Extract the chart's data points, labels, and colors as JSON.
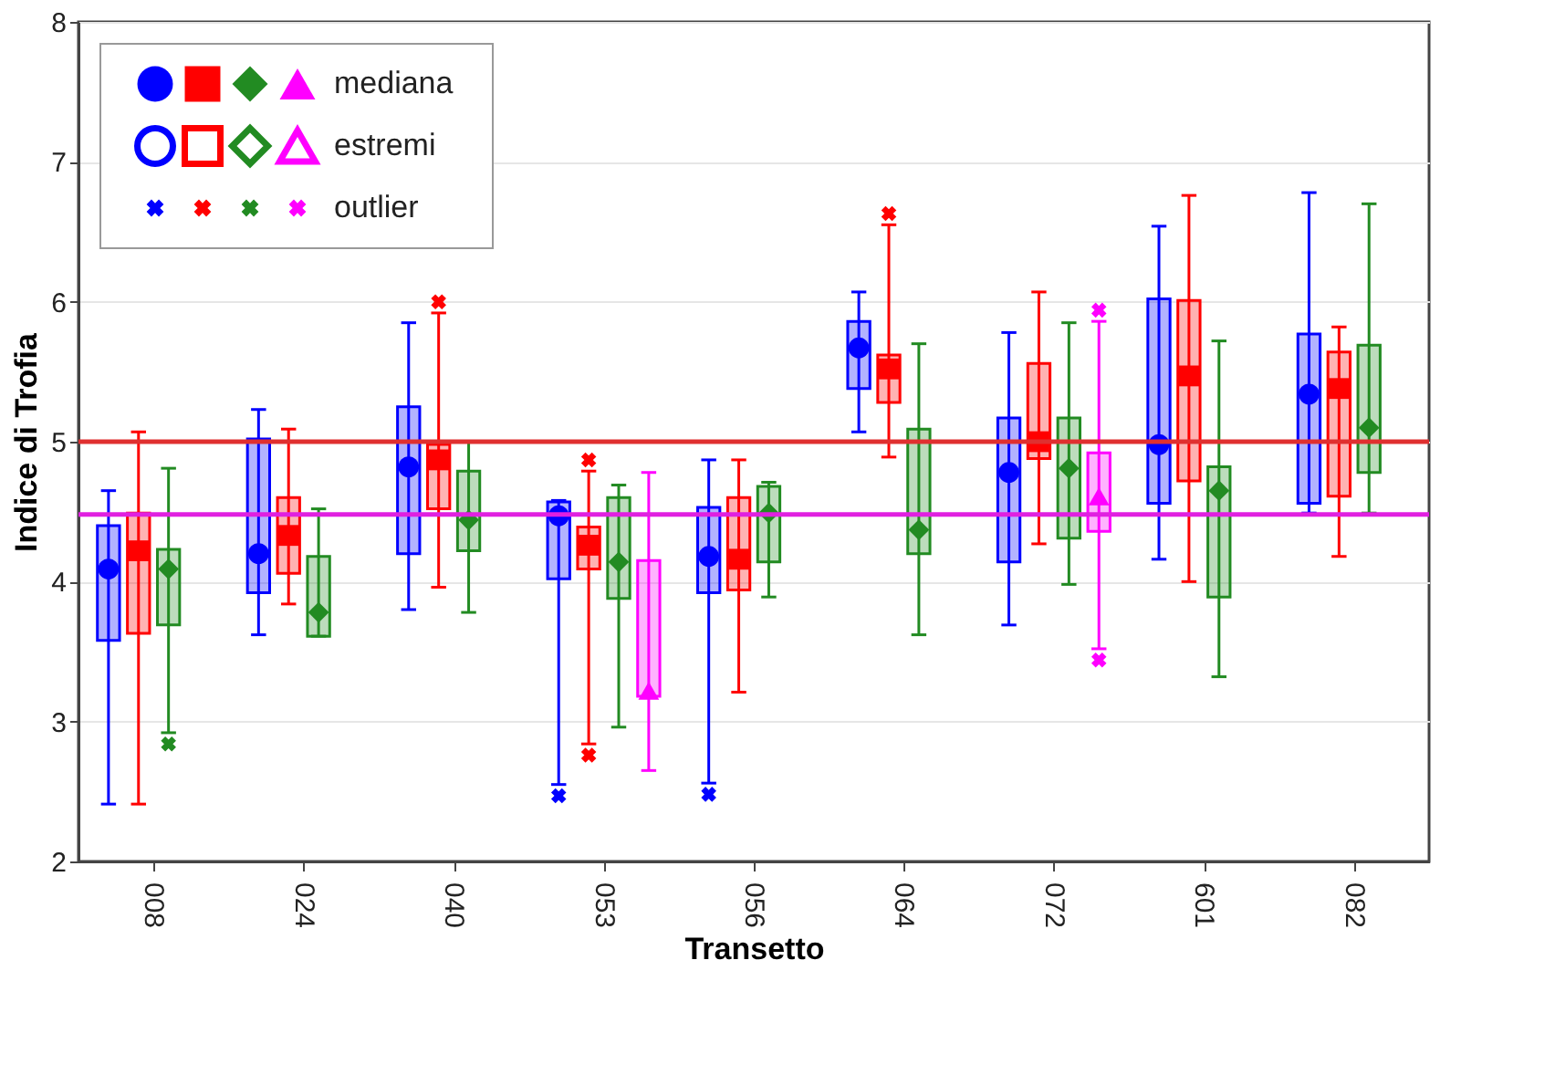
{
  "chart_data": {
    "type": "box",
    "xlabel": "Transetto",
    "ylabel": "Indice di Trofia",
    "categories": [
      "008",
      "024",
      "040",
      "053",
      "056",
      "064",
      "072",
      "601",
      "082"
    ],
    "ylim": [
      2,
      8
    ],
    "yticks": [
      2,
      3,
      4,
      5,
      6,
      7,
      8
    ],
    "grid": "y",
    "annotations": [
      "mediana",
      "estremi",
      "outlier"
    ],
    "ref_lines": [
      {
        "axis": "y",
        "value": 5.0,
        "color": "#e03030"
      },
      {
        "axis": "y",
        "value": 4.48,
        "color": "#e020e0"
      }
    ],
    "series": [
      {
        "color": "#0000ff",
        "marker": "circle",
        "boxes": [
          {
            "low": 2.41,
            "q1": 3.58,
            "median": 4.09,
            "q3": 4.4,
            "high": 4.65
          },
          {
            "low": 3.62,
            "q1": 3.92,
            "median": 4.2,
            "q3": 5.02,
            "high": 5.23
          },
          {
            "low": 3.8,
            "q1": 4.2,
            "median": 4.82,
            "q3": 5.25,
            "high": 5.85
          },
          {
            "low": 2.55,
            "q1": 4.02,
            "median": 4.47,
            "q3": 4.57,
            "high": 4.58,
            "outliers": [
              2.47
            ]
          },
          {
            "low": 2.56,
            "q1": 3.92,
            "median": 4.18,
            "q3": 4.53,
            "high": 4.87,
            "outliers": [
              2.48
            ]
          },
          {
            "low": 5.07,
            "q1": 5.38,
            "median": 5.67,
            "q3": 5.86,
            "high": 6.07
          },
          {
            "low": 3.69,
            "q1": 4.14,
            "median": 4.78,
            "q3": 5.17,
            "high": 5.78
          },
          {
            "low": 4.16,
            "q1": 4.56,
            "median": 4.98,
            "q3": 6.02,
            "high": 6.54
          },
          {
            "low": 4.49,
            "q1": 4.56,
            "median": 5.34,
            "q3": 5.77,
            "high": 6.78
          }
        ]
      },
      {
        "color": "#ff0000",
        "marker": "square",
        "boxes": [
          {
            "low": 2.41,
            "q1": 3.63,
            "median": 4.22,
            "q3": 4.49,
            "high": 5.07
          },
          {
            "low": 3.84,
            "q1": 4.06,
            "median": 4.33,
            "q3": 4.6,
            "high": 5.09
          },
          {
            "low": 3.96,
            "q1": 4.52,
            "median": 4.87,
            "q3": 4.98,
            "high": 5.92,
            "outliers": [
              6.0
            ]
          },
          {
            "low": 2.84,
            "q1": 4.09,
            "median": 4.26,
            "q3": 4.39,
            "high": 4.79,
            "outliers": [
              4.87,
              2.76
            ]
          },
          {
            "low": 3.21,
            "q1": 3.94,
            "median": 4.16,
            "q3": 4.6,
            "high": 4.87
          },
          {
            "low": 4.89,
            "q1": 5.28,
            "median": 5.52,
            "q3": 5.62,
            "high": 6.55,
            "outliers": [
              6.63
            ]
          },
          {
            "low": 4.27,
            "q1": 4.88,
            "median": 5.0,
            "q3": 5.56,
            "high": 6.07
          },
          {
            "low": 4.0,
            "q1": 4.72,
            "median": 5.47,
            "q3": 6.01,
            "high": 6.76
          },
          {
            "low": 4.18,
            "q1": 4.61,
            "median": 5.38,
            "q3": 5.64,
            "high": 5.82
          }
        ]
      },
      {
        "color": "#228b22",
        "marker": "diamond",
        "boxes": [
          {
            "low": 2.92,
            "q1": 3.69,
            "median": 4.09,
            "q3": 4.23,
            "high": 4.81,
            "outliers": [
              2.84
            ]
          },
          {
            "low": 3.61,
            "q1": 3.61,
            "median": 3.78,
            "q3": 4.18,
            "high": 4.52
          },
          {
            "low": 3.78,
            "q1": 4.22,
            "median": 4.44,
            "q3": 4.79,
            "high": 5.0
          },
          {
            "low": 2.96,
            "q1": 3.88,
            "median": 4.14,
            "q3": 4.6,
            "high": 4.69
          },
          {
            "low": 3.89,
            "q1": 4.14,
            "median": 4.49,
            "q3": 4.68,
            "high": 4.71
          },
          {
            "low": 3.62,
            "q1": 4.2,
            "median": 4.37,
            "q3": 5.09,
            "high": 5.7
          },
          {
            "low": 3.98,
            "q1": 4.31,
            "median": 4.81,
            "q3": 5.17,
            "high": 5.85
          },
          {
            "low": 3.32,
            "q1": 3.89,
            "median": 4.65,
            "q3": 4.82,
            "high": 5.72
          },
          {
            "low": 4.49,
            "q1": 4.78,
            "median": 5.1,
            "q3": 5.69,
            "high": 6.7
          }
        ]
      },
      {
        "color": "#ff00ff",
        "marker": "triangle",
        "boxes": [
          null,
          null,
          null,
          {
            "low": 2.65,
            "q1": 3.18,
            "median": 3.22,
            "q3": 4.15,
            "high": 4.78
          },
          null,
          null,
          {
            "low": 3.52,
            "q1": 4.36,
            "median": 4.61,
            "q3": 4.92,
            "high": 5.86,
            "outliers": [
              5.94,
              3.44
            ]
          },
          null,
          null
        ]
      }
    ]
  }
}
